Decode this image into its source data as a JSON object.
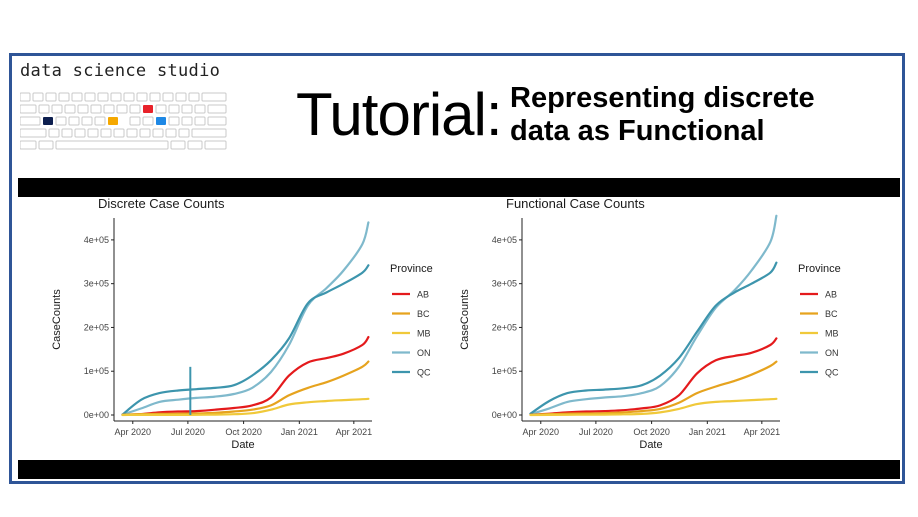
{
  "brand": "data science studio",
  "title_word": "Tutorial:",
  "subtitle_lines": [
    "Representing discrete",
    "data as Functional"
  ],
  "colors": {
    "frame": "#2f5597",
    "accent_red": "#e8222a",
    "accent_orange": "#f5a800",
    "accent_blue": "#1e88e5",
    "accent_navy": "#0d1f4f"
  },
  "chart_data": [
    {
      "type": "line",
      "title": "Discrete Case Counts",
      "xlabel": "Date",
      "ylabel": "CaseCounts",
      "x_ticks": [
        "Apr 2020",
        "Jul 2020",
        "Oct 2020",
        "Jan 2021",
        "Apr 2021"
      ],
      "y_ticks": [
        "0e+00",
        "1e+05",
        "2e+05",
        "3e+05",
        "4e+05"
      ],
      "ylim": [
        0,
        450000
      ],
      "grid": false,
      "legend_title": "Province",
      "legend_position": "right",
      "x": [
        "2020-03-15",
        "2020-04-15",
        "2020-05-15",
        "2020-06-15",
        "2020-07-15",
        "2020-08-15",
        "2020-09-15",
        "2020-10-15",
        "2020-11-15",
        "2020-12-15",
        "2021-01-15",
        "2021-02-15",
        "2021-03-15",
        "2021-04-15",
        "2021-04-25"
      ],
      "series": [
        {
          "name": "AB",
          "color": "#e41a1c",
          "values": [
            300,
            2000,
            6000,
            8000,
            9000,
            12000,
            16000,
            22000,
            40000,
            90000,
            120000,
            130000,
            140000,
            160000,
            178000
          ]
        },
        {
          "name": "BC",
          "color": "#e6a31e",
          "values": [
            400,
            2000,
            2500,
            3000,
            3500,
            5000,
            8000,
            12000,
            22000,
            45000,
            62000,
            75000,
            90000,
            110000,
            122000
          ]
        },
        {
          "name": "MB",
          "color": "#f0c93a",
          "values": [
            100,
            200,
            300,
            300,
            500,
            1000,
            1800,
            4000,
            12000,
            24000,
            29000,
            32000,
            34000,
            36000,
            37000
          ]
        },
        {
          "name": "ON",
          "color": "#7fb9cc",
          "values": [
            800,
            15000,
            30000,
            35000,
            39000,
            42000,
            48000,
            62000,
            98000,
            160000,
            250000,
            290000,
            330000,
            390000,
            440000
          ]
        },
        {
          "name": "QC",
          "color": "#3d95ad",
          "values": [
            1000,
            35000,
            50000,
            56000,
            59000,
            62000,
            68000,
            90000,
            125000,
            175000,
            255000,
            280000,
            300000,
            325000,
            342000
          ]
        }
      ],
      "spike": {
        "x": "2020-07-05",
        "value": 110000,
        "series": "QC"
      }
    },
    {
      "type": "line",
      "title": "Functional Case Counts",
      "xlabel": "Date",
      "ylabel": "CaseCounts",
      "x_ticks": [
        "Apr 2020",
        "Jul 2020",
        "Oct 2020",
        "Jan 2021",
        "Apr 2021"
      ],
      "y_ticks": [
        "0e+00",
        "1e+05",
        "2e+05",
        "3e+05",
        "4e+05"
      ],
      "ylim": [
        0,
        450000
      ],
      "grid": false,
      "legend_title": "Province",
      "legend_position": "right",
      "x": [
        "2020-03-15",
        "2020-04-15",
        "2020-05-15",
        "2020-06-15",
        "2020-07-15",
        "2020-08-15",
        "2020-09-15",
        "2020-10-15",
        "2020-11-15",
        "2020-12-15",
        "2021-01-15",
        "2021-02-15",
        "2021-03-15",
        "2021-04-15",
        "2021-04-25"
      ],
      "series": [
        {
          "name": "AB",
          "color": "#e41a1c",
          "values": [
            500,
            3000,
            6000,
            8000,
            9000,
            11000,
            15000,
            22000,
            45000,
            95000,
            125000,
            135000,
            142000,
            160000,
            175000
          ]
        },
        {
          "name": "BC",
          "color": "#e6a31e",
          "values": [
            400,
            2000,
            3000,
            3500,
            4000,
            6000,
            9000,
            14000,
            28000,
            50000,
            65000,
            78000,
            92000,
            112000,
            122000
          ]
        },
        {
          "name": "MB",
          "color": "#f0c93a",
          "values": [
            100,
            300,
            500,
            800,
            1000,
            1500,
            2500,
            6000,
            14000,
            25000,
            30000,
            32000,
            34000,
            36000,
            37000
          ]
        },
        {
          "name": "ON",
          "color": "#7fb9cc",
          "values": [
            2000,
            15000,
            30000,
            36000,
            40000,
            43000,
            50000,
            66000,
            110000,
            180000,
            245000,
            285000,
            330000,
            395000,
            455000
          ]
        },
        {
          "name": "QC",
          "color": "#3d95ad",
          "values": [
            3000,
            32000,
            50000,
            56000,
            58000,
            61000,
            68000,
            90000,
            130000,
            190000,
            250000,
            280000,
            300000,
            325000,
            348000
          ]
        }
      ]
    }
  ]
}
